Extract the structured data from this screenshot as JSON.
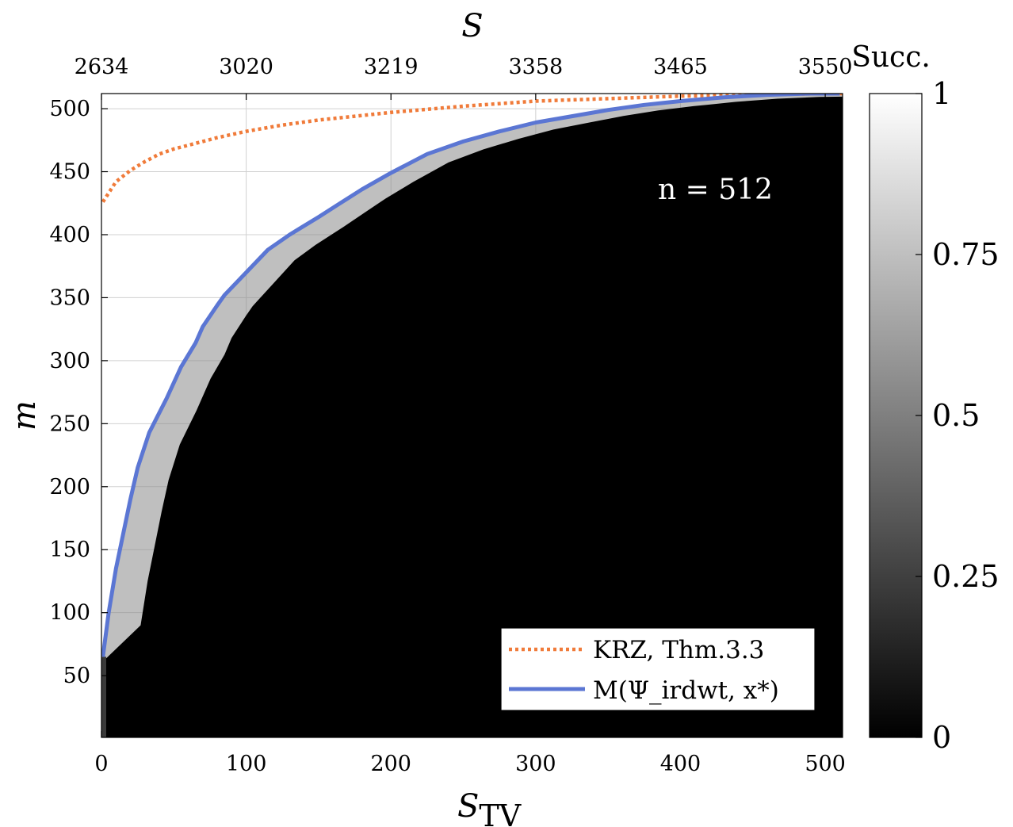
{
  "chart_data": {
    "type": "heatmap",
    "x_axis": {
      "label_main": "S",
      "label_sub": "TV",
      "range": [
        0,
        512
      ],
      "ticks": [
        0,
        100,
        200,
        300,
        400,
        500
      ],
      "tick_labels": [
        "0",
        "100",
        "200",
        "300",
        "400",
        "500"
      ]
    },
    "y_axis": {
      "label": "m",
      "range": [
        1,
        512
      ],
      "ticks": [
        50,
        100,
        150,
        200,
        250,
        300,
        350,
        400,
        450,
        500
      ],
      "tick_labels": [
        "50",
        "100",
        "150",
        "200",
        "250",
        "300",
        "350",
        "400",
        "450",
        "500"
      ]
    },
    "top_axis": {
      "label": "S",
      "tick_positions_stv": [
        0,
        100,
        200,
        300,
        400,
        500
      ],
      "tick_labels": [
        "2634",
        "3020",
        "3219",
        "3358",
        "3465",
        "3550"
      ]
    },
    "colorbar": {
      "title": "Succ.",
      "range": [
        0,
        1
      ],
      "ticks": [
        0,
        0.25,
        0.5,
        0.75,
        1
      ],
      "tick_labels": [
        "0",
        "0.25",
        "0.5",
        "0.75",
        "1"
      ],
      "colormap": "gray"
    },
    "annotation": "n = 512",
    "grid": true,
    "legend_position": "bottom-right",
    "series": [
      {
        "name": "KRZ, Thm.3.3",
        "style": "dotted",
        "color": "#f07b3a",
        "x": [
          1,
          10,
          20,
          30,
          40,
          50,
          60,
          80,
          100,
          125,
          150,
          175,
          200,
          250,
          300,
          350,
          400,
          450,
          500,
          512
        ],
        "y": [
          426,
          442,
          451,
          458,
          464,
          468,
          471,
          477,
          482,
          487,
          491,
          494,
          497,
          502,
          506,
          508,
          510,
          511,
          512,
          512
        ]
      },
      {
        "name": "M(Ψ_irdwt, x*)",
        "style": "solid",
        "color": "#5b76d3",
        "x": [
          1,
          5,
          10,
          20,
          25,
          33,
          45,
          55,
          65,
          70,
          80,
          85,
          100,
          115,
          130,
          150,
          165,
          180,
          200,
          225,
          250,
          275,
          300,
          325,
          350,
          375,
          400,
          430,
          460,
          490,
          510
        ],
        "y": [
          65,
          100,
          135,
          190,
          215,
          243,
          270,
          295,
          314,
          327,
          344,
          352,
          370,
          388,
          400,
          414,
          425,
          436,
          449,
          464,
          474,
          482,
          489,
          494,
          499,
          503,
          506,
          509,
          511,
          512,
          512
        ]
      }
    ]
  }
}
